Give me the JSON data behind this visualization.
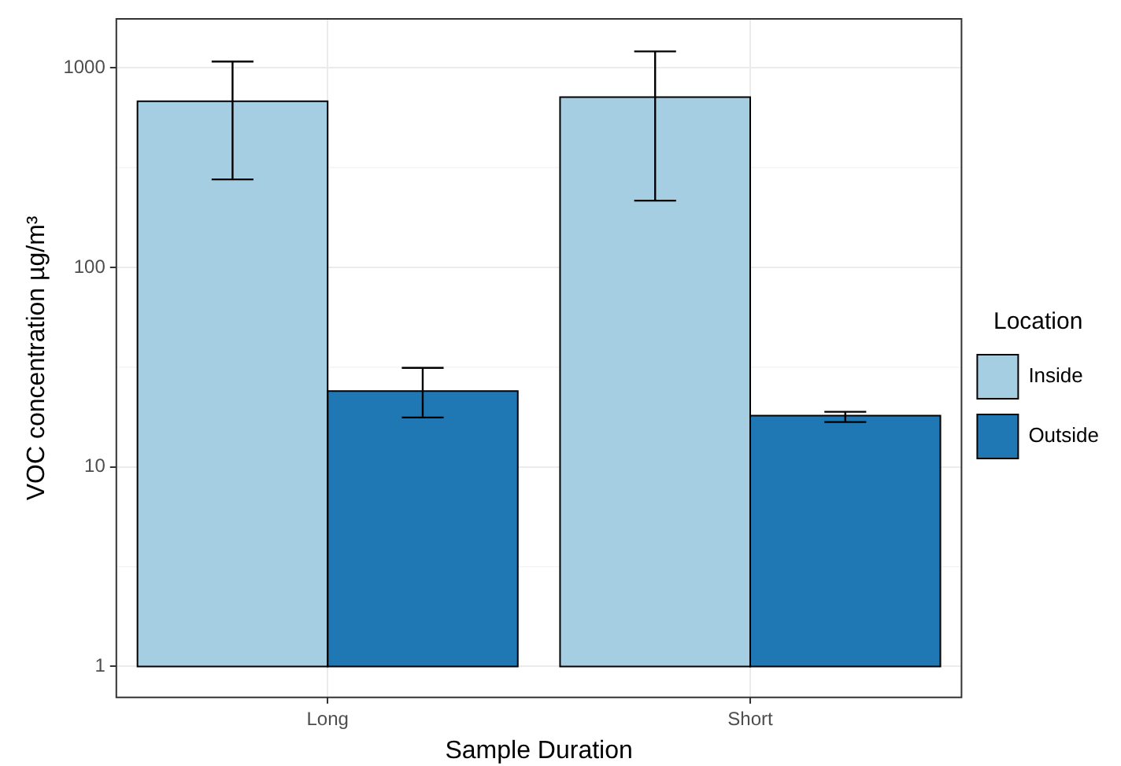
{
  "chart_data": {
    "type": "bar",
    "xlabel": "Sample Duration",
    "ylabel": "VOC concentration µg/m³",
    "legend_title": "Location",
    "categories": [
      "Long",
      "Short"
    ],
    "series": [
      {
        "name": "Inside",
        "color": "#a6cee3",
        "base": [
          1,
          1
        ],
        "values": [
          680,
          713
        ],
        "errors": [
          [
            276,
            1076
          ],
          [
            216,
            1209
          ]
        ]
      },
      {
        "name": "Outside",
        "color": "#1f78b4",
        "base": [
          1,
          1
        ],
        "values": [
          23,
          17.1
        ],
        "errors": [
          [
            17.7,
            31.4
          ],
          [
            16.8,
            18.9
          ]
        ]
      }
    ],
    "log": true,
    "ylim": [
      0.7,
      1760
    ],
    "yticks": [
      1,
      10,
      100,
      1000
    ],
    "grid": true,
    "legend": "right"
  }
}
